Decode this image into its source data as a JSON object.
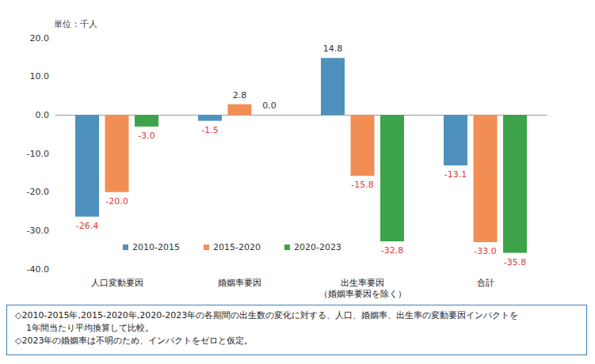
{
  "chart_data": {
    "type": "bar",
    "ylabel": "単位：千人",
    "categories": [
      "人口変動要因",
      "婚姻率要因",
      "出生率要因\n（婚姻率要因を除く）",
      "合計"
    ],
    "series": [
      {
        "name": "2010-2015",
        "color": "#4e91bd",
        "values": [
          -26.4,
          -1.5,
          14.8,
          -13.1
        ],
        "value_labels": [
          "-26.4",
          "-1.5",
          "14.8",
          "-13.1"
        ]
      },
      {
        "name": "2015-2020",
        "color": "#f28e53",
        "values": [
          -20.0,
          2.8,
          -15.8,
          -33.0
        ],
        "value_labels": [
          "-20.0",
          "2.8",
          "-15.8",
          "-33.0"
        ]
      },
      {
        "name": "2020-2023",
        "color": "#3ca34a",
        "values": [
          -3.0,
          0.0,
          -32.8,
          -35.8
        ],
        "value_labels": [
          "-3.0",
          "0.0",
          "-32.8",
          "-35.8"
        ]
      }
    ],
    "ylim": [
      -40,
      20
    ],
    "yticks": [
      {
        "value": -40,
        "label": "-40.0"
      },
      {
        "value": -30,
        "label": "-30.0"
      },
      {
        "value": -20,
        "label": "-20.0"
      },
      {
        "value": -10,
        "label": "-10.0"
      },
      {
        "value": 0,
        "label": "0.0"
      },
      {
        "value": 10,
        "label": "10.0"
      },
      {
        "value": 20,
        "label": "20.0"
      }
    ],
    "grid": false,
    "legend": "bottom",
    "data_labels": true,
    "annotations": [
      "◇2010-2015年,2015-2020年,2020-2023年の各期間の出生数の変化に対する、人口、婚姻率、出生率の変動要因インパクトを",
      "1年間当たり平均換算して比較。",
      "◇2023年の婚姻率は不明のため、インパクトをゼロと仮定。"
    ]
  }
}
